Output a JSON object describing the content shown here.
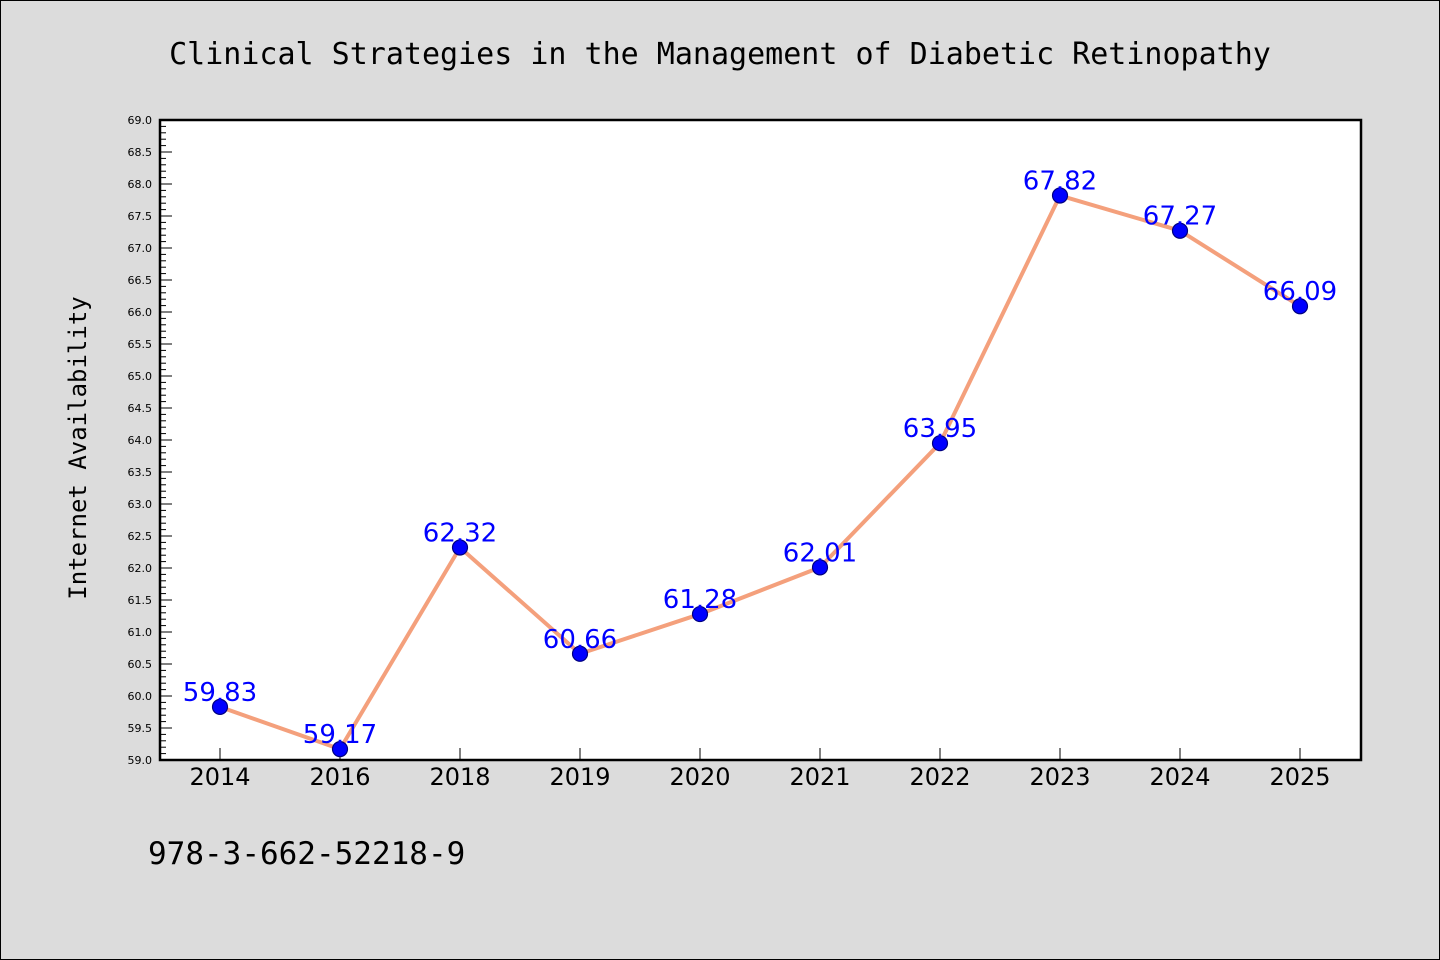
{
  "chart_data": {
    "type": "line",
    "title": "Clinical Strategies in the Management of Diabetic Retinopathy",
    "xlabel": "",
    "ylabel": "Internet Availability",
    "categories": [
      "2014",
      "2016",
      "2018",
      "2019",
      "2020",
      "2021",
      "2022",
      "2023",
      "2024",
      "2025"
    ],
    "series": [
      {
        "values": [
          59.83,
          59.17,
          62.32,
          60.66,
          61.28,
          62.01,
          63.95,
          67.82,
          67.27,
          66.09
        ]
      }
    ],
    "data_labels": [
      "59.83",
      "59.17",
      "62.32",
      "60.66",
      "61.28",
      "62.01",
      "63.95",
      "67.82",
      "67.27",
      "66.09"
    ],
    "ylim": [
      59.0,
      69.0
    ],
    "ytick_step": 0.5,
    "grid": false,
    "legend": "none",
    "colors": {
      "line": "#f4a07c",
      "marker": "#0000ff",
      "marker_edge": "#000080",
      "data_label": "#0000ff",
      "background": "#dcdcdc",
      "plot_background": "#ffffff"
    }
  },
  "footer": {
    "isbn": "978-3-662-52218-9"
  }
}
